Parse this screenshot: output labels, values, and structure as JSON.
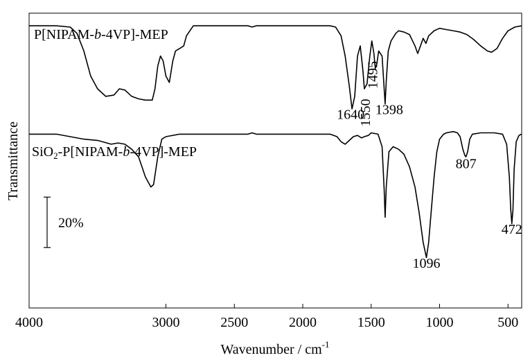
{
  "chart_data": {
    "type": "line",
    "title": "",
    "xlabel": "Wavenumber / cm",
    "xlabel_superscript": "-1",
    "ylabel": "Transmittance",
    "xlim": [
      4000,
      400
    ],
    "x_reversed": true,
    "x_ticks": [
      {
        "value": 4000,
        "label": "4000"
      },
      {
        "value": 3000,
        "label": "3000"
      },
      {
        "value": 2500,
        "label": "2500"
      },
      {
        "value": 2000,
        "label": "2000"
      },
      {
        "value": 1500,
        "label": "1500"
      },
      {
        "value": 1000,
        "label": "1000"
      },
      {
        "value": 500,
        "label": "500"
      }
    ],
    "y_units": "% transmittance (offset, relative)",
    "ylim": [
      -12,
      105
    ],
    "grid": false,
    "scale_bar": {
      "label": "20%",
      "value": 20
    },
    "series": [
      {
        "name_parts": [
          {
            "text": "P[NIPAM-",
            "style": "normal"
          },
          {
            "text": "b",
            "style": "italic"
          },
          {
            "text": "-4VP]-MEP",
            "style": "normal"
          }
        ],
        "points": [
          [
            4000,
            100
          ],
          [
            3800,
            100
          ],
          [
            3700,
            99.5
          ],
          [
            3650,
            97
          ],
          [
            3600,
            90
          ],
          [
            3550,
            80
          ],
          [
            3500,
            75
          ],
          [
            3440,
            72
          ],
          [
            3380,
            72.5
          ],
          [
            3340,
            75
          ],
          [
            3300,
            74.5
          ],
          [
            3250,
            72
          ],
          [
            3200,
            71
          ],
          [
            3150,
            70.5
          ],
          [
            3100,
            70.5
          ],
          [
            3080,
            75
          ],
          [
            3060,
            84
          ],
          [
            3040,
            88
          ],
          [
            3020,
            86
          ],
          [
            3000,
            80
          ],
          [
            2975,
            77.5
          ],
          [
            2950,
            86
          ],
          [
            2930,
            90
          ],
          [
            2900,
            91
          ],
          [
            2870,
            92
          ],
          [
            2850,
            96
          ],
          [
            2800,
            100
          ],
          [
            2400,
            100
          ],
          [
            2370,
            99.5
          ],
          [
            2340,
            100
          ],
          [
            1800,
            100
          ],
          [
            1760,
            99.5
          ],
          [
            1720,
            96
          ],
          [
            1690,
            88
          ],
          [
            1660,
            76
          ],
          [
            1640,
            67
          ],
          [
            1620,
            72
          ],
          [
            1600,
            88
          ],
          [
            1580,
            92
          ],
          [
            1560,
            82
          ],
          [
            1550,
            75
          ],
          [
            1530,
            77
          ],
          [
            1510,
            88
          ],
          [
            1495,
            94
          ],
          [
            1480,
            89
          ],
          [
            1470,
            83
          ],
          [
            1458,
            85
          ],
          [
            1445,
            90
          ],
          [
            1420,
            88
          ],
          [
            1405,
            75
          ],
          [
            1398,
            69
          ],
          [
            1390,
            78
          ],
          [
            1375,
            90
          ],
          [
            1355,
            94
          ],
          [
            1320,
            97
          ],
          [
            1300,
            98
          ],
          [
            1260,
            97.5
          ],
          [
            1220,
            96.5
          ],
          [
            1180,
            92
          ],
          [
            1160,
            89
          ],
          [
            1140,
            92
          ],
          [
            1120,
            95
          ],
          [
            1100,
            93
          ],
          [
            1080,
            96
          ],
          [
            1040,
            98
          ],
          [
            1000,
            99
          ],
          [
            950,
            98.5
          ],
          [
            900,
            98
          ],
          [
            850,
            97.5
          ],
          [
            800,
            96.5
          ],
          [
            750,
            94.5
          ],
          [
            700,
            92
          ],
          [
            650,
            90
          ],
          [
            620,
            89.5
          ],
          [
            580,
            91
          ],
          [
            540,
            95
          ],
          [
            500,
            98
          ],
          [
            450,
            99.5
          ],
          [
            400,
            100
          ]
        ]
      },
      {
        "name_parts": [
          {
            "text": "SiO",
            "style": "normal"
          },
          {
            "text": "2",
            "style": "sub"
          },
          {
            "text": "-P[NIPAM-",
            "style": "normal"
          },
          {
            "text": "b",
            "style": "italic"
          },
          {
            "text": "-4VP]-MEP",
            "style": "normal"
          }
        ],
        "points": [
          [
            4000,
            57
          ],
          [
            3800,
            57
          ],
          [
            3700,
            56
          ],
          [
            3600,
            55
          ],
          [
            3500,
            54.5
          ],
          [
            3400,
            53
          ],
          [
            3350,
            53.5
          ],
          [
            3300,
            53
          ],
          [
            3250,
            51
          ],
          [
            3200,
            48
          ],
          [
            3150,
            40
          ],
          [
            3110,
            36
          ],
          [
            3090,
            37
          ],
          [
            3060,
            48
          ],
          [
            3030,
            55
          ],
          [
            3000,
            56
          ],
          [
            2900,
            57
          ],
          [
            2400,
            57
          ],
          [
            2370,
            57.5
          ],
          [
            2340,
            57
          ],
          [
            1800,
            57
          ],
          [
            1750,
            56
          ],
          [
            1720,
            54
          ],
          [
            1690,
            53
          ],
          [
            1660,
            54.5
          ],
          [
            1630,
            56
          ],
          [
            1600,
            56.5
          ],
          [
            1570,
            55.5
          ],
          [
            1550,
            56
          ],
          [
            1520,
            56.5
          ],
          [
            1500,
            57.5
          ],
          [
            1450,
            57
          ],
          [
            1420,
            52
          ],
          [
            1405,
            35
          ],
          [
            1398,
            24
          ],
          [
            1390,
            36
          ],
          [
            1370,
            50
          ],
          [
            1340,
            52
          ],
          [
            1300,
            51
          ],
          [
            1260,
            49
          ],
          [
            1220,
            44
          ],
          [
            1180,
            36
          ],
          [
            1150,
            26
          ],
          [
            1120,
            14
          ],
          [
            1096,
            8
          ],
          [
            1080,
            14
          ],
          [
            1060,
            27
          ],
          [
            1040,
            40
          ],
          [
            1020,
            50
          ],
          [
            1000,
            55
          ],
          [
            970,
            57
          ],
          [
            950,
            57.5
          ],
          [
            900,
            58
          ],
          [
            870,
            57.5
          ],
          [
            850,
            56
          ],
          [
            830,
            51
          ],
          [
            815,
            48.5
          ],
          [
            807,
            48
          ],
          [
            795,
            50
          ],
          [
            780,
            55
          ],
          [
            760,
            57
          ],
          [
            700,
            57.5
          ],
          [
            600,
            57.5
          ],
          [
            540,
            57
          ],
          [
            510,
            53
          ],
          [
            490,
            40
          ],
          [
            480,
            27
          ],
          [
            472,
            21.5
          ],
          [
            464,
            27
          ],
          [
            455,
            43
          ],
          [
            440,
            54
          ],
          [
            420,
            56.5
          ],
          [
            400,
            57
          ]
        ]
      }
    ],
    "annotations": [
      {
        "text": "1640",
        "x": 1640,
        "y": 63,
        "rotate": 0
      },
      {
        "text": "1550",
        "x": 1550,
        "y": 71,
        "rotate": -90
      },
      {
        "text": "1495",
        "x": 1495,
        "y": 86,
        "rotate": -90
      },
      {
        "text": "1398",
        "x": 1398,
        "y": 65,
        "rotate": 0
      },
      {
        "text": "807",
        "x": 807,
        "y": 43.5,
        "rotate": 0
      },
      {
        "text": "472",
        "x": 472,
        "y": 17.5,
        "rotate": 0
      },
      {
        "text": "1096",
        "x": 1096,
        "y": 4,
        "rotate": 0
      }
    ]
  }
}
